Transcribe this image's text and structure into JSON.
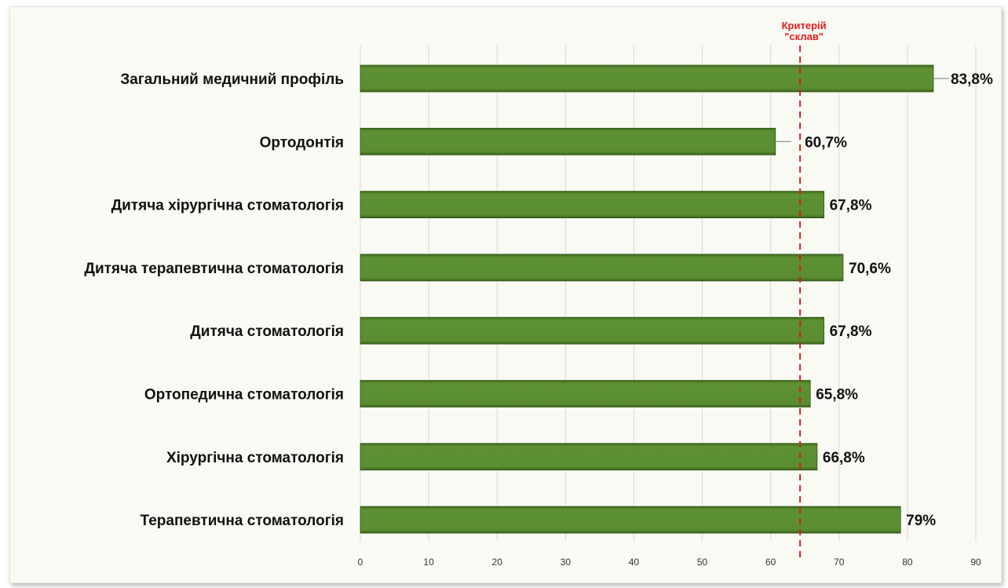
{
  "chart_data": {
    "type": "bar",
    "orientation": "horizontal",
    "categories": [
      "Загальний медичний профіль",
      "Ортодонтія",
      "Дитяча хірургічна стоматологія",
      "Дитяча терапевтична стоматологія",
      "Дитяча стоматологія",
      "Ортопедична стоматологія",
      "Хірургічна стоматологія",
      "Терапевтична стоматологія"
    ],
    "values": [
      83.8,
      60.7,
      67.8,
      70.6,
      67.8,
      65.8,
      66.8,
      79
    ],
    "value_labels": [
      "83,8%",
      "60,7%",
      "67,8%",
      "70,6%",
      "67,8%",
      "65,8%",
      "66,8%",
      "79%"
    ],
    "xlim": [
      0,
      90
    ],
    "x_ticks": [
      0,
      10,
      20,
      30,
      40,
      50,
      60,
      70,
      80,
      90
    ],
    "x_tick_labels": [
      "0",
      "10",
      "20",
      "30",
      "40",
      "50",
      "60",
      "70",
      "80",
      "90"
    ],
    "grid": "vertical",
    "bar_color": "#5b8c32",
    "reference_line": {
      "value": 64.3,
      "label_lines": [
        "Критерій",
        "\"склав\""
      ],
      "color": "#d42020",
      "style": "dashed"
    },
    "title": "",
    "xlabel": "",
    "ylabel": ""
  }
}
